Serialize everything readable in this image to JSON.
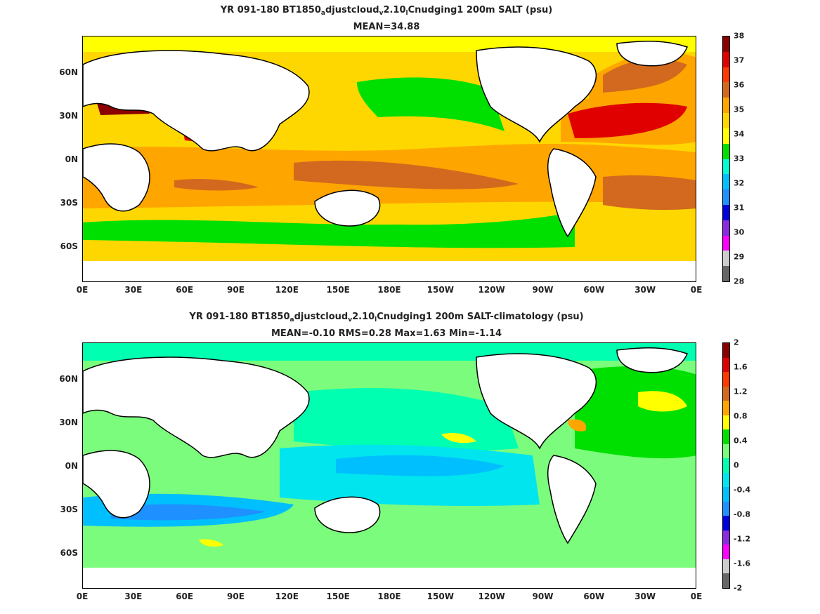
{
  "panel1": {
    "title_a": "YR 091-180 BT1850",
    "title_b": "a",
    "title_c": "djustcloud",
    "title_d": "v",
    "title_e": "2.10",
    "title_f": "l",
    "title_g": "Cnudging1 200m SALT (psu)",
    "stats": "MEAN=34.88",
    "colorbar": {
      "labels": [
        "38",
        "37",
        "36",
        "35",
        "34",
        "33",
        "32",
        "31",
        "30",
        "29",
        "28"
      ],
      "colors": [
        "#8b0000",
        "#e00000",
        "#ff3a00",
        "#d2691e",
        "#ffa500",
        "#ffd700",
        "#ffff00",
        "#00e000",
        "#00ffd0",
        "#00bfff",
        "#1e90ff",
        "#0000e0",
        "#8a2be2",
        "#ff00ff",
        "#cccccc",
        "#666666"
      ]
    }
  },
  "panel2": {
    "title_a": "YR 091-180 BT1850",
    "title_b": "a",
    "title_c": "djustcloud",
    "title_d": "v",
    "title_e": "2.10",
    "title_f": "l",
    "title_g": "Cnudging1 200m SALT-climatology (psu)",
    "stats": "MEAN=-0.10   RMS=0.28   Max=1.63   Min=-1.14",
    "colorbar": {
      "labels": [
        "2",
        "1.6",
        "1.2",
        "0.8",
        "0.4",
        "0",
        "-0.4",
        "-0.8",
        "-1.2",
        "-1.6",
        "-2"
      ],
      "colors": [
        "#8b0000",
        "#e00000",
        "#ff3a00",
        "#d2691e",
        "#ffa500",
        "#ffff00",
        "#00e000",
        "#7cfc7c",
        "#00ffb0",
        "#00e5ee",
        "#00bfff",
        "#1e90ff",
        "#0000e0",
        "#8a2be2",
        "#ff00ff",
        "#cccccc",
        "#666666"
      ]
    }
  },
  "axes": {
    "x_labels": [
      "0E",
      "30E",
      "60E",
      "90E",
      "120E",
      "150E",
      "180E",
      "150W",
      "120W",
      "90W",
      "60W",
      "30W",
      "0E"
    ],
    "y_labels": [
      "60N",
      "30N",
      "0N",
      "30S",
      "60S"
    ]
  }
}
